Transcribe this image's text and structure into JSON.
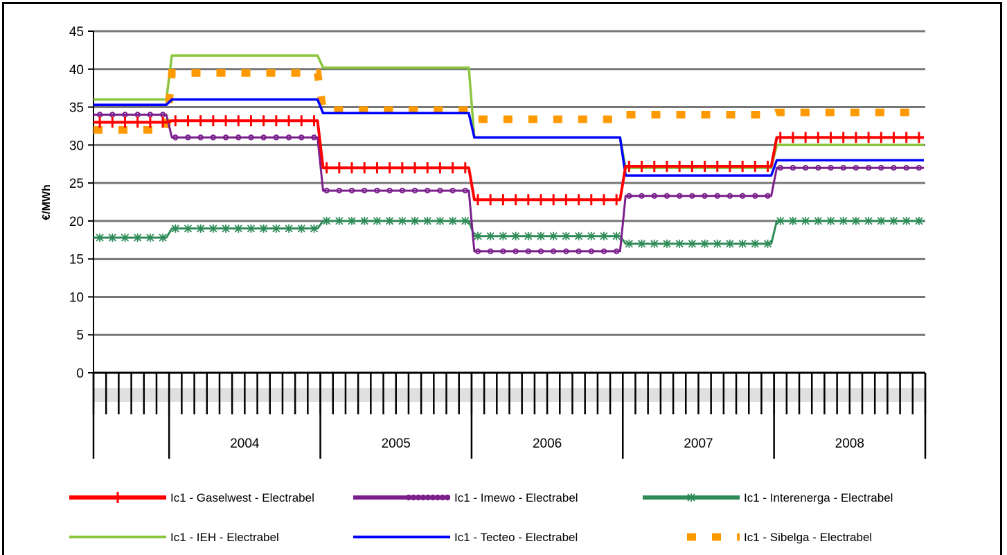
{
  "chart_data": {
    "type": "line",
    "title": "",
    "xlabel": "",
    "ylabel": "€/MWh",
    "ylim": [
      0,
      45
    ],
    "yticks": [
      0,
      5,
      10,
      15,
      20,
      25,
      30,
      35,
      40,
      45
    ],
    "grid": true,
    "legend_position": "bottom",
    "x_unit": "month",
    "x_start": "2003-07",
    "years": [
      {
        "label": "",
        "months": 6
      },
      {
        "label": "2004",
        "months": 12
      },
      {
        "label": "2005",
        "months": 12
      },
      {
        "label": "2006",
        "months": 12
      },
      {
        "label": "2007",
        "months": 12
      },
      {
        "label": "2008",
        "months": 12
      }
    ],
    "series": [
      {
        "name": "Ic1 - Gaselwest - Electrabel",
        "color": "#ff0000",
        "style": "line-plus",
        "segments": [
          [
            0,
            6,
            33.0
          ],
          [
            6,
            18,
            33.2
          ],
          [
            18,
            30,
            27.0
          ],
          [
            30,
            42,
            22.8
          ],
          [
            42,
            54,
            27.2
          ],
          [
            54,
            66,
            31.0
          ]
        ]
      },
      {
        "name": "Ic1 - Imewo - Electrabel",
        "color": "#7a1f8c",
        "style": "line-circle",
        "segments": [
          [
            0,
            6,
            34.0
          ],
          [
            6,
            18,
            31.0
          ],
          [
            18,
            30,
            24.0
          ],
          [
            30,
            42,
            16.0
          ],
          [
            42,
            54,
            23.3
          ],
          [
            54,
            66,
            27.0
          ]
        ]
      },
      {
        "name": "Ic1 - Interenerga - Electrabel",
        "color": "#2e8b57",
        "style": "line-star",
        "segments": [
          [
            0,
            6,
            17.8
          ],
          [
            6,
            18,
            19.0
          ],
          [
            18,
            30,
            20.0
          ],
          [
            30,
            42,
            18.0
          ],
          [
            42,
            54,
            17.0
          ],
          [
            54,
            66,
            20.0
          ]
        ]
      },
      {
        "name": "Ic1 - IEH - Electrabel",
        "color": "#8cc63f",
        "style": "line",
        "segments": [
          [
            0,
            6,
            36.0
          ],
          [
            6,
            18,
            41.8
          ],
          [
            18,
            30,
            40.2
          ],
          [
            30,
            42,
            31.0
          ],
          [
            42,
            54,
            27.0
          ],
          [
            54,
            66,
            30.0
          ]
        ]
      },
      {
        "name": "Ic1 - Tecteo - Electrabel",
        "color": "#0000ff",
        "style": "line",
        "segments": [
          [
            0,
            6,
            35.3
          ],
          [
            6,
            18,
            36.0
          ],
          [
            18,
            30,
            34.2
          ],
          [
            30,
            42,
            31.0
          ],
          [
            42,
            54,
            26.0
          ],
          [
            54,
            66,
            28.0
          ]
        ]
      },
      {
        "name": "Ic1 - Sibelga - Electrabel",
        "color": "#ff9900",
        "style": "dash",
        "segments": [
          [
            0,
            6,
            32.0
          ],
          [
            6,
            18,
            39.5
          ],
          [
            18,
            30,
            34.6
          ],
          [
            30,
            42,
            33.4
          ],
          [
            42,
            54,
            34.0
          ],
          [
            54,
            66,
            34.3
          ]
        ]
      }
    ]
  }
}
